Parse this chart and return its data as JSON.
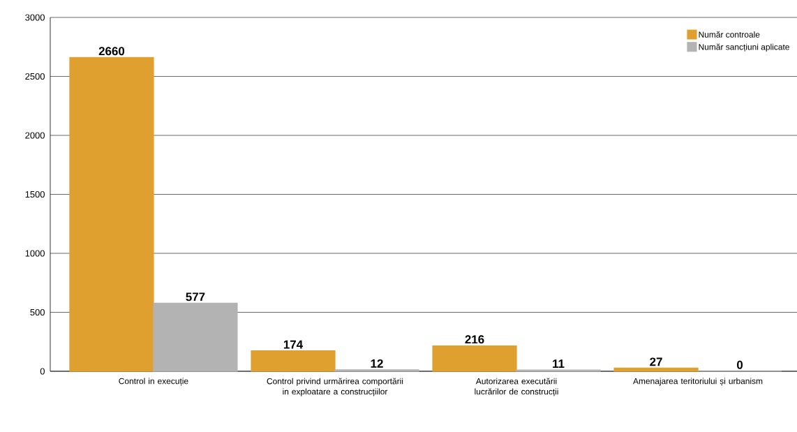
{
  "chart_data": {
    "type": "bar",
    "categories": [
      "Control in execuție",
      "Control privind urmărirea comportării in exploatare a construcțiilor",
      "Autorizarea executării lucrărilor de construcții",
      "Amenajarea teritoriului și urbanism"
    ],
    "series": [
      {
        "name": "Număr controale",
        "color": "#e0a030",
        "values": [
          2660,
          174,
          216,
          27
        ]
      },
      {
        "name": "Număr sancțiuni aplicate",
        "color": "#b3b3b3",
        "values": [
          577,
          12,
          11,
          0
        ]
      }
    ],
    "ylim": [
      0,
      3000
    ],
    "yticks": [
      0,
      500,
      1000,
      1500,
      2000,
      2500,
      3000
    ],
    "grid": "y",
    "legend": "top right",
    "data_labels": true
  }
}
